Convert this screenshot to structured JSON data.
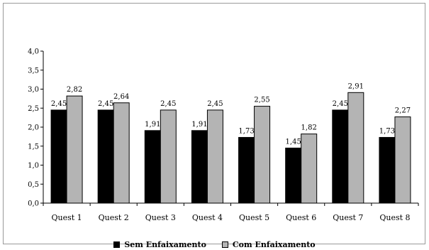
{
  "chart_data": {
    "type": "bar",
    "title": "",
    "xlabel": "",
    "ylabel": "",
    "categories": [
      "Quest 1",
      "Quest 2",
      "Quest 3",
      "Quest 4",
      "Quest 5",
      "Quest 6",
      "Quest 7",
      "Quest 8"
    ],
    "series": [
      {
        "name": "Sem Enfaixamento",
        "color": "#000000",
        "values": [
          2.45,
          2.45,
          1.91,
          1.91,
          1.73,
          1.45,
          2.45,
          1.73
        ],
        "labels": [
          "2,45",
          "2,45",
          "1,91",
          "1,91",
          "1,73",
          "1,45",
          "2,45",
          "1,73"
        ]
      },
      {
        "name": "Com Enfaixamento",
        "color": "#b4b4b4",
        "values": [
          2.82,
          2.64,
          2.45,
          2.45,
          2.55,
          1.82,
          2.91,
          2.27
        ],
        "labels": [
          "2,82",
          "2,64",
          "2,45",
          "2,45",
          "2,55",
          "1,82",
          "2,91",
          "2,27"
        ]
      }
    ],
    "ylim": [
      0,
      4.0
    ],
    "yticks": [
      0,
      0.5,
      1.0,
      1.5,
      2.0,
      2.5,
      3.0,
      3.5,
      4.0
    ],
    "ytick_labels": [
      "0,0",
      "0,5",
      "1,0",
      "1,5",
      "2,0",
      "2,5",
      "3,0",
      "3,5",
      "4,0"
    ],
    "grid": false,
    "legend_position": "bottom"
  }
}
